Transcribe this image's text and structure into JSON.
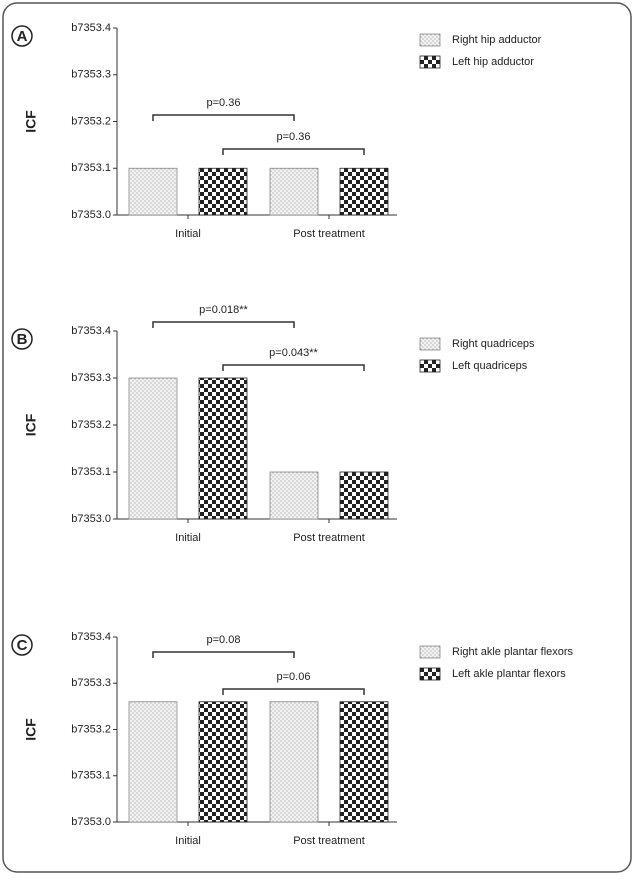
{
  "chart_data": [
    {
      "type": "bar",
      "panel": "A",
      "y_label": "ICF",
      "categories": [
        "Initial",
        "Post treatment"
      ],
      "series": [
        {
          "name": "Right hip adductor",
          "color": "#888888",
          "pattern": "dots",
          "values": [
            7353.1,
            7353.1
          ]
        },
        {
          "name": "Left hip adductor",
          "color": "#222222",
          "pattern": "checker",
          "values": [
            7353.1,
            7353.1
          ]
        }
      ],
      "ylim": [
        7353.0,
        7353.4
      ],
      "yticks": [
        {
          "value": 7353.0,
          "label": "b7353.0"
        },
        {
          "value": 7353.1,
          "label": "b7353.1"
        },
        {
          "value": 7353.2,
          "label": "b7353.2"
        },
        {
          "value": 7353.3,
          "label": "b7353.3"
        },
        {
          "value": 7353.4,
          "label": "b7353.4"
        }
      ],
      "annotations": [
        "p=0.36",
        "p=0.36"
      ]
    },
    {
      "type": "bar",
      "panel": "B",
      "y_label": "ICF",
      "categories": [
        "Initial",
        "Post treatment"
      ],
      "series": [
        {
          "name": "Right quadriceps",
          "color": "#888888",
          "pattern": "dots",
          "values": [
            7353.3,
            7353.1
          ]
        },
        {
          "name": "Left quadriceps",
          "color": "#222222",
          "pattern": "checker",
          "values": [
            7353.3,
            7353.1
          ]
        }
      ],
      "ylim": [
        7353.0,
        7353.4
      ],
      "yticks": [
        {
          "value": 7353.0,
          "label": "b7353.0"
        },
        {
          "value": 7353.1,
          "label": "b7353.1"
        },
        {
          "value": 7353.2,
          "label": "b7353.2"
        },
        {
          "value": 7353.3,
          "label": "b7353.3"
        },
        {
          "value": 7353.4,
          "label": "b7353.4"
        }
      ],
      "annotations": [
        "p=0.018**",
        "p=0.043**"
      ]
    },
    {
      "type": "bar",
      "panel": "C",
      "y_label": "ICF",
      "categories": [
        "Initial",
        "Post treatment"
      ],
      "series": [
        {
          "name": "Right akle plantar flexors",
          "color": "#888888",
          "pattern": "dots",
          "values": [
            7353.26,
            7353.26
          ]
        },
        {
          "name": "Left akle plantar flexors",
          "color": "#222222",
          "pattern": "checker",
          "values": [
            7353.26,
            7353.26
          ]
        }
      ],
      "ylim": [
        7353.0,
        7353.4
      ],
      "yticks": [
        {
          "value": 7353.0,
          "label": "b7353.0"
        },
        {
          "value": 7353.1,
          "label": "b7353.1"
        },
        {
          "value": 7353.2,
          "label": "b7353.2"
        },
        {
          "value": 7353.3,
          "label": "b7353.3"
        },
        {
          "value": 7353.4,
          "label": "b7353.4"
        }
      ],
      "annotations": [
        "p=0.08",
        "p=0.06"
      ]
    }
  ]
}
